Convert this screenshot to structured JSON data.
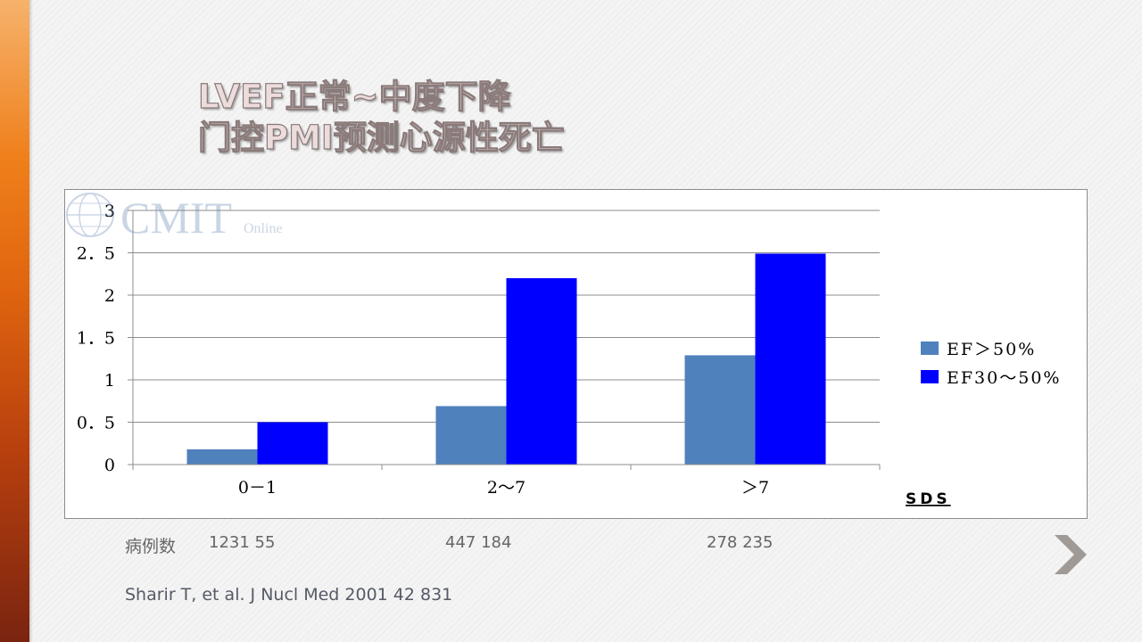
{
  "slide": {
    "title_line1": "LVEF正常~中度下降",
    "title_line2": "门控PMI预测心源性死亡",
    "cases_label": "病例数",
    "cases_groups": [
      "1231   55",
      "447    184",
      "278    235"
    ],
    "citation": "Sharir T, et al. J Nucl Med 2001 42 831",
    "watermark_text": "CMIT",
    "watermark_sub": "Online",
    "accent_color": "#e0650f",
    "next_icon": "chevron-right-icon"
  },
  "chart_data": {
    "type": "bar",
    "categories": [
      "0－1",
      "2～7",
      "＞7"
    ],
    "series": [
      {
        "name": "EF＞50%",
        "values": [
          0.18,
          0.69,
          1.29
        ],
        "color": "#4f81bd"
      },
      {
        "name": "EF30～50%",
        "values": [
          0.5,
          2.2,
          2.49
        ],
        "color": "#0000ff"
      }
    ],
    "yticks": [
      "0",
      "0．5",
      "1",
      "1．5",
      "2",
      "2．5",
      "3"
    ],
    "ylim": [
      0,
      3
    ],
    "xlabel": "SDS",
    "title": "",
    "ylabel": "",
    "grid": true,
    "legend": "right"
  }
}
